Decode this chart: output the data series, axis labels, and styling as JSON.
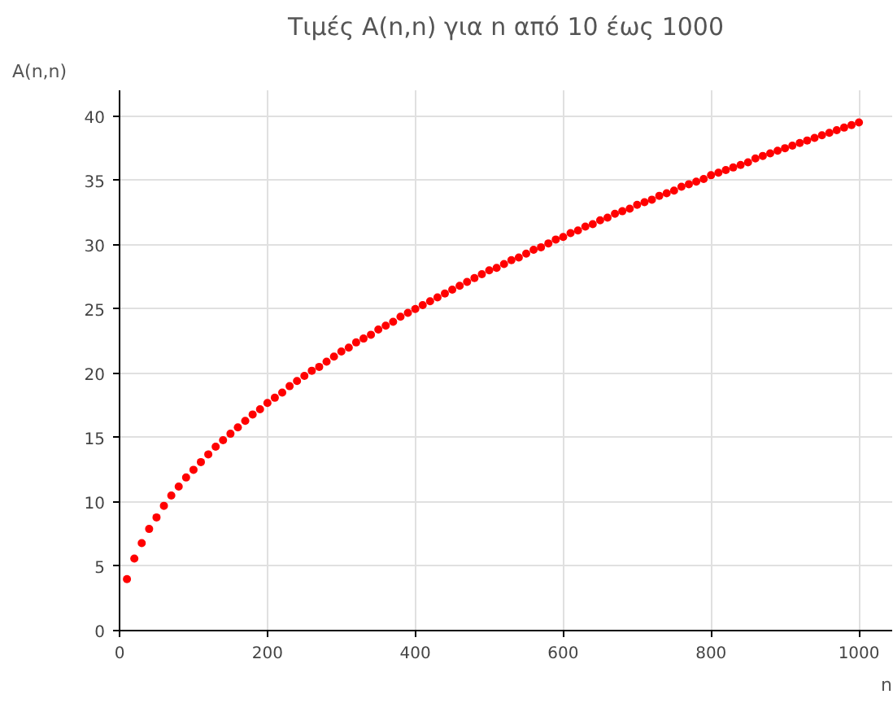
{
  "chart_data": {
    "type": "scatter",
    "title": "Τιμές A(n,n) για n από 10 έως 1000",
    "xlabel": "n",
    "ylabel": "A(n,n)",
    "x": [
      10,
      20,
      30,
      40,
      50,
      60,
      70,
      80,
      90,
      100,
      110,
      120,
      130,
      140,
      150,
      160,
      170,
      180,
      190,
      200,
      210,
      220,
      230,
      240,
      250,
      260,
      270,
      280,
      290,
      300,
      310,
      320,
      330,
      340,
      350,
      360,
      370,
      380,
      390,
      400,
      410,
      420,
      430,
      440,
      450,
      460,
      470,
      480,
      490,
      500,
      510,
      520,
      530,
      540,
      550,
      560,
      570,
      580,
      590,
      600,
      610,
      620,
      630,
      640,
      650,
      660,
      670,
      680,
      690,
      700,
      710,
      720,
      730,
      740,
      750,
      760,
      770,
      780,
      790,
      800,
      810,
      820,
      830,
      840,
      850,
      860,
      870,
      880,
      890,
      900,
      910,
      920,
      930,
      940,
      950,
      960,
      970,
      980,
      990,
      1000
    ],
    "series": [
      {
        "color": "#ff0000",
        "values": [
          4.0,
          5.6,
          6.8,
          7.9,
          8.8,
          9.7,
          10.5,
          11.2,
          11.9,
          12.5,
          13.1,
          13.7,
          14.3,
          14.8,
          15.3,
          15.8,
          16.3,
          16.8,
          17.2,
          17.7,
          18.1,
          18.5,
          19.0,
          19.4,
          19.8,
          20.2,
          20.5,
          20.9,
          21.3,
          21.7,
          22.0,
          22.4,
          22.7,
          23.0,
          23.4,
          23.7,
          24.0,
          24.4,
          24.7,
          25.0,
          25.3,
          25.6,
          25.9,
          26.2,
          26.5,
          26.8,
          27.1,
          27.4,
          27.7,
          28.0,
          28.2,
          28.5,
          28.8,
          29.0,
          29.3,
          29.6,
          29.8,
          30.1,
          30.4,
          30.6,
          30.9,
          31.1,
          31.4,
          31.6,
          31.9,
          32.1,
          32.4,
          32.6,
          32.8,
          33.1,
          33.3,
          33.5,
          33.8,
          34.0,
          34.2,
          34.5,
          34.7,
          34.9,
          35.1,
          35.4,
          35.6,
          35.8,
          36.0,
          36.2,
          36.4,
          36.7,
          36.9,
          37.1,
          37.3,
          37.5,
          37.7,
          37.9,
          38.1,
          38.3,
          38.5,
          38.7,
          38.9,
          39.1,
          39.3,
          39.5
        ]
      }
    ],
    "xlim": [
      0,
      1045
    ],
    "ylim": [
      0,
      42
    ],
    "xticks": [
      0,
      200,
      400,
      600,
      800,
      1000
    ],
    "yticks": [
      0,
      5,
      10,
      15,
      20,
      25,
      30,
      35,
      40
    ],
    "grid": true,
    "marker": "circle"
  }
}
